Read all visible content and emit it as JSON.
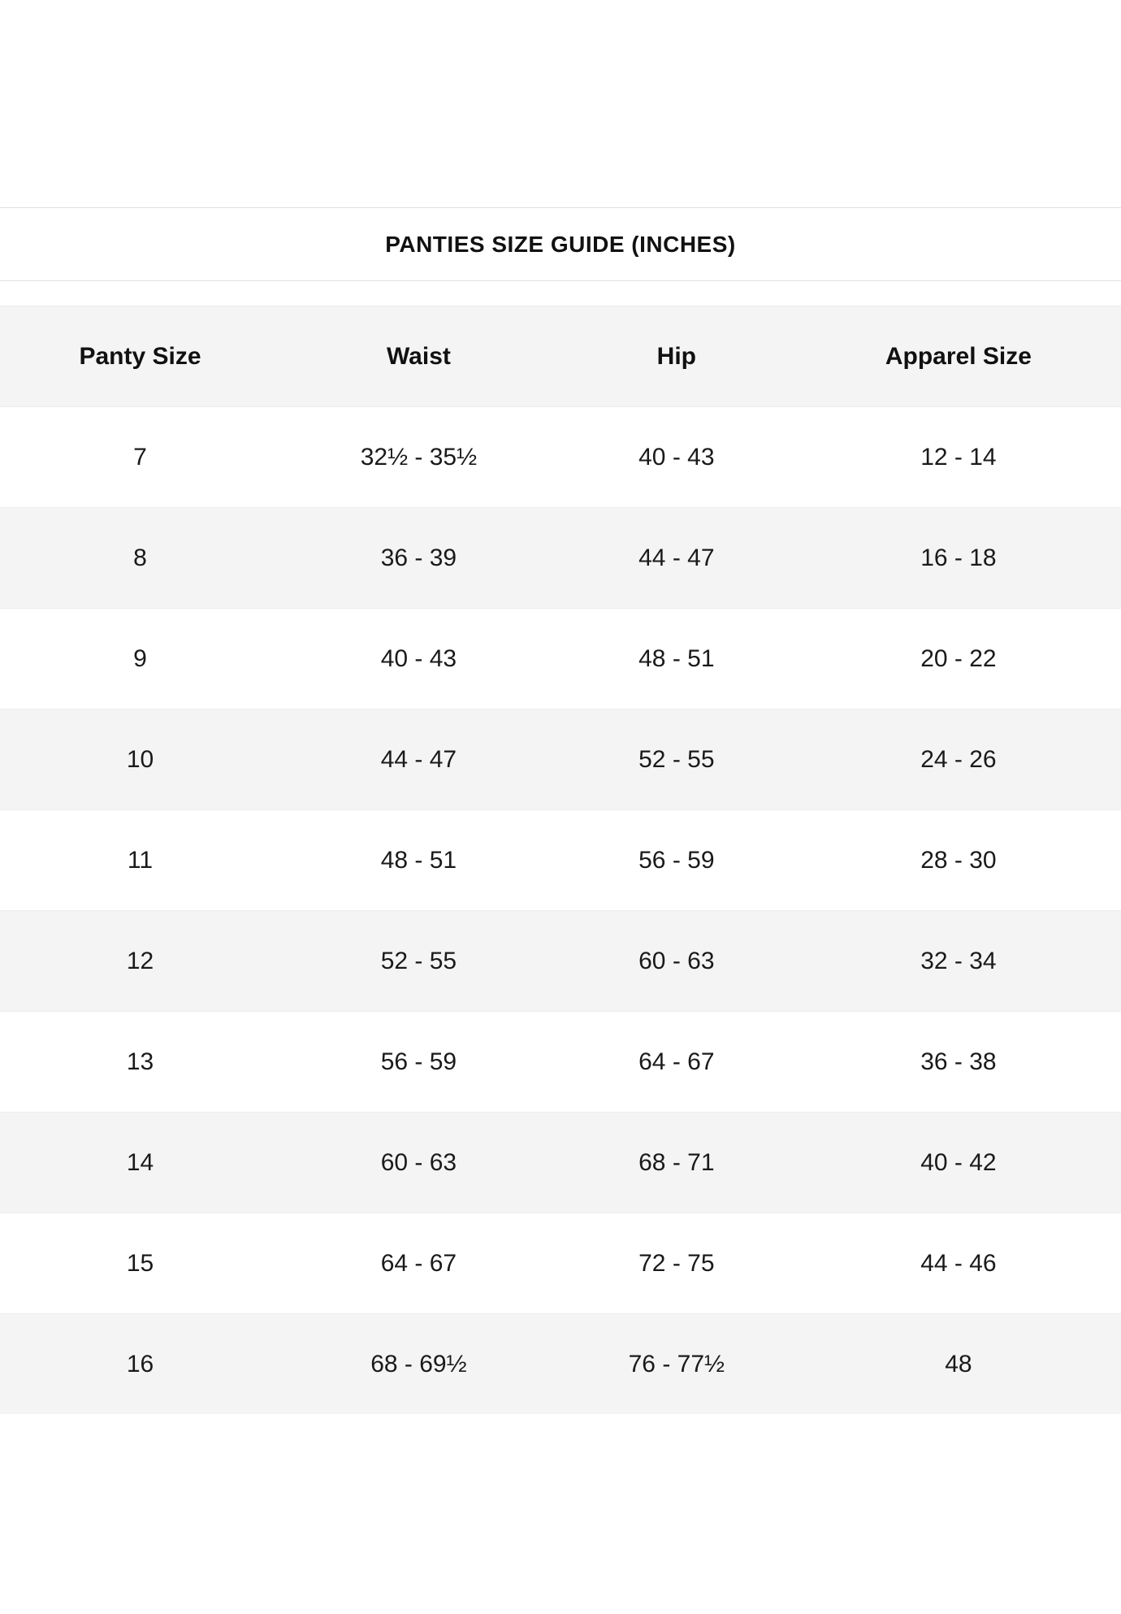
{
  "chart_data": {
    "type": "table",
    "title": "PANTIES SIZE GUIDE (INCHES)",
    "columns": [
      "Panty Size",
      "Waist",
      "Hip",
      "Apparel Size"
    ],
    "rows": [
      [
        "7",
        "32½ - 35½",
        "40 - 43",
        "12 - 14"
      ],
      [
        "8",
        "36 - 39",
        "44 - 47",
        "16 - 18"
      ],
      [
        "9",
        "40 - 43",
        "48 - 51",
        "20 - 22"
      ],
      [
        "10",
        "44 - 47",
        "52 - 55",
        "24 - 26"
      ],
      [
        "11",
        "48 - 51",
        "56 - 59",
        "28 - 30"
      ],
      [
        "12",
        "52 - 55",
        "60 - 63",
        "32 - 34"
      ],
      [
        "13",
        "56 - 59",
        "64 - 67",
        "36 - 38"
      ],
      [
        "14",
        "60 - 63",
        "68 - 71",
        "40 - 42"
      ],
      [
        "15",
        "64 - 67",
        "72 - 75",
        "44 - 46"
      ],
      [
        "16",
        "68 - 69½",
        "76 - 77½",
        "48"
      ]
    ],
    "layout": {
      "alternating_rows": true,
      "header_background": "#f4f4f4"
    }
  },
  "colors": {
    "alt_row_bg": "#f4f4f4",
    "divider": "#e2e2e2",
    "row_border": "#ededed",
    "text": "#1a1a1a"
  }
}
